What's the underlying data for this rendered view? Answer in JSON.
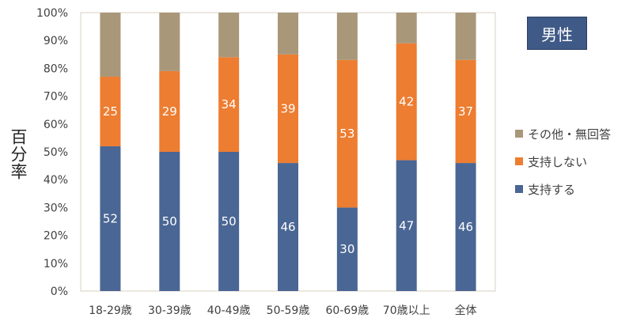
{
  "badge": "男性",
  "chart_data": {
    "type": "bar",
    "stacked": true,
    "ylabel": "百分率",
    "ylim": [
      0,
      100
    ],
    "yticks": [
      "0%",
      "10%",
      "20%",
      "30%",
      "40%",
      "50%",
      "60%",
      "70%",
      "80%",
      "90%",
      "100%"
    ],
    "categories": [
      "18-29歳",
      "30-39歳",
      "40-49歳",
      "50-59歳",
      "60-69歳",
      "70歳以上",
      "全体"
    ],
    "series": [
      {
        "name": "支持する",
        "color": "#4a6694",
        "values": [
          52,
          50,
          50,
          46,
          30,
          47,
          46
        ],
        "labels": [
          "52",
          "50",
          "50",
          "46",
          "30",
          "47",
          "46"
        ]
      },
      {
        "name": "支持しない",
        "color": "#ed7d31",
        "values": [
          25,
          29,
          34,
          39,
          53,
          42,
          37
        ],
        "labels": [
          "25",
          "29",
          "34",
          "39",
          "53",
          "42",
          "37"
        ]
      },
      {
        "name": "その他・無回答",
        "color": "#a9977a",
        "values": [
          23,
          21,
          16,
          15,
          17,
          11,
          17
        ],
        "labels": []
      }
    ],
    "legend_order": [
      "その他・無回答",
      "支持しない",
      "支持する"
    ],
    "legend_position": "right",
    "grid": false
  }
}
